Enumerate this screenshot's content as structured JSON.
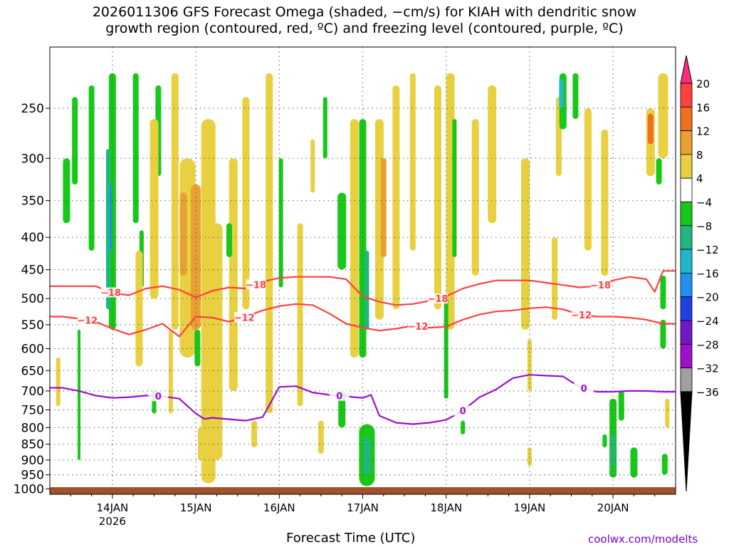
{
  "title_line1": "2026011306 GFS Forecast Omega (shaded, −cm/s) for KIAH with dendritic snow",
  "title_line2": "growth region (contoured, red, ºC) and freezing level (contoured, purple, ºC)",
  "xlabel": "Forecast Time (UTC)",
  "credit": "coolwx.com/modelts",
  "chart_data": {
    "type": "heatmap",
    "title": "2026011306 GFS Forecast Omega (shaded, −cm/s) for KIAH with dendritic snow growth region (contoured, red, ºC) and freezing level (contoured, purple, ºC)",
    "xlabel": "Forecast Time (UTC)",
    "ylabel": "",
    "y_scale": "log (pressure, hPa)",
    "y_ticks": [
      250,
      300,
      350,
      400,
      450,
      500,
      550,
      600,
      650,
      700,
      750,
      800,
      850,
      900,
      950,
      1000
    ],
    "ylim": [
      1020,
      200
    ],
    "x_ticks": [
      "14JAN",
      "15JAN",
      "16JAN",
      "17JAN",
      "18JAN",
      "19JAN",
      "20JAN"
    ],
    "x_tick_sublabel": "2026",
    "xlim_days": [
      13.25,
      20.75
    ],
    "grid": true,
    "colorbar": {
      "tick_labels": [
        "20",
        "16",
        "12",
        "8",
        "4",
        "−4",
        "−8",
        "−12",
        "−16",
        "−20",
        "−24",
        "−28",
        "−32",
        "−36"
      ],
      "colors": [
        "#ff2a7a",
        "#ff4040",
        "#f07020",
        "#e8a030",
        "#e8d040",
        "#ffffff",
        "#18c818",
        "#20b880",
        "#20b8c8",
        "#2090f0",
        "#2040e0",
        "#7018c8",
        "#a010c8",
        "#a0a0a0",
        "#000000"
      ]
    },
    "contour_labels": {
      "minus18": "−18",
      "minus12": "−12",
      "zero": "0"
    },
    "contour_minus18": {
      "color": "#ff4040",
      "x": [
        13.25,
        13.4,
        13.6,
        13.8,
        14.0,
        14.2,
        14.4,
        14.6,
        14.8,
        15.0,
        15.2,
        15.4,
        15.6,
        15.8,
        16.0,
        16.2,
        16.4,
        16.6,
        16.8,
        17.0,
        17.2,
        17.4,
        17.6,
        17.8,
        18.0,
        18.2,
        18.4,
        18.6,
        18.8,
        19.0,
        19.2,
        19.4,
        19.6,
        19.8,
        20.0,
        20.2,
        20.4,
        20.5,
        20.6,
        20.75
      ],
      "y": [
        478,
        478,
        478,
        478,
        490,
        494,
        482,
        478,
        484,
        498,
        486,
        480,
        482,
        470,
        464,
        462,
        462,
        462,
        466,
        496,
        506,
        512,
        510,
        504,
        496,
        482,
        474,
        468,
        468,
        468,
        472,
        476,
        480,
        478,
        468,
        462,
        466,
        488,
        452,
        452
      ]
    },
    "contour_minus12": {
      "color": "#ff4040",
      "x": [
        13.25,
        13.4,
        13.6,
        13.8,
        14.0,
        14.2,
        14.4,
        14.6,
        14.8,
        15.0,
        15.2,
        15.4,
        15.6,
        15.8,
        16.0,
        16.2,
        16.4,
        16.6,
        16.8,
        17.0,
        17.2,
        17.4,
        17.6,
        17.8,
        18.0,
        18.2,
        18.4,
        18.6,
        18.8,
        19.0,
        19.2,
        19.4,
        19.6,
        19.8,
        20.0,
        20.2,
        20.4,
        20.6,
        20.75
      ],
      "y": [
        534,
        534,
        538,
        544,
        558,
        570,
        560,
        548,
        574,
        534,
        536,
        544,
        534,
        522,
        514,
        510,
        512,
        528,
        548,
        556,
        562,
        558,
        552,
        556,
        554,
        540,
        530,
        524,
        522,
        518,
        516,
        520,
        530,
        534,
        534,
        536,
        540,
        548,
        548
      ]
    },
    "contour_zero": {
      "color": "#9a10c8",
      "x": [
        13.25,
        13.4,
        13.6,
        13.8,
        14.0,
        14.2,
        14.4,
        14.6,
        14.8,
        15.0,
        15.1,
        15.2,
        15.4,
        15.6,
        15.8,
        16.0,
        16.2,
        16.4,
        16.6,
        16.8,
        17.0,
        17.1,
        17.2,
        17.4,
        17.6,
        17.8,
        18.0,
        18.2,
        18.4,
        18.6,
        18.8,
        19.0,
        19.2,
        19.4,
        19.6,
        19.8,
        20.0,
        20.2,
        20.4,
        20.6,
        20.75
      ],
      "y": [
        692,
        692,
        700,
        712,
        718,
        716,
        712,
        714,
        720,
        760,
        775,
        772,
        776,
        780,
        770,
        690,
        688,
        704,
        710,
        714,
        718,
        710,
        766,
        786,
        790,
        786,
        778,
        752,
        716,
        696,
        668,
        660,
        662,
        664,
        690,
        702,
        702,
        700,
        700,
        702,
        702
      ]
    }
  }
}
